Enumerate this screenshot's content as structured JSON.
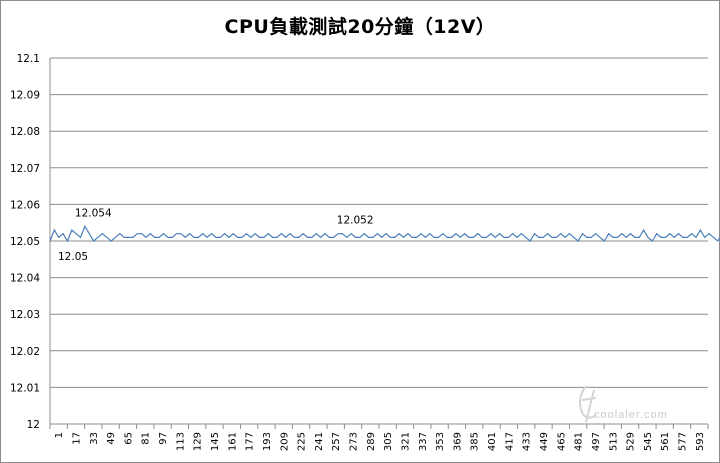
{
  "chart_data": {
    "type": "line",
    "title": "CPU負載測試20分鐘（12V）",
    "xlabel": "",
    "ylabel": "",
    "ylim": [
      12.0,
      12.1
    ],
    "yticks": [
      "12",
      "12.01",
      "12.02",
      "12.03",
      "12.04",
      "12.05",
      "12.06",
      "12.07",
      "12.08",
      "12.09",
      "12.1"
    ],
    "xlim": [
      1,
      604
    ],
    "xticks": [
      1,
      17,
      33,
      49,
      65,
      81,
      97,
      113,
      129,
      145,
      161,
      177,
      193,
      209,
      225,
      241,
      257,
      273,
      289,
      305,
      321,
      337,
      353,
      369,
      385,
      401,
      417,
      433,
      449,
      465,
      481,
      497,
      513,
      529,
      545,
      561,
      577,
      593
    ],
    "grid": "horizontal",
    "legend": "none",
    "series_color": "#4a7ebb",
    "series": [
      {
        "sample_interval": 4,
        "values": [
          12.05,
          12.053,
          12.051,
          12.052,
          12.05,
          12.053,
          12.052,
          12.051,
          12.054,
          12.052,
          12.05,
          12.051,
          12.052,
          12.051,
          12.05,
          12.051,
          12.052,
          12.051,
          12.051,
          12.051,
          12.052,
          12.052,
          12.051,
          12.052,
          12.051,
          12.051,
          12.052,
          12.051,
          12.051,
          12.052,
          12.052,
          12.051,
          12.052,
          12.051,
          12.051,
          12.052,
          12.051,
          12.052,
          12.051,
          12.051,
          12.052,
          12.051,
          12.052,
          12.051,
          12.051,
          12.052,
          12.051,
          12.052,
          12.051,
          12.051,
          12.052,
          12.051,
          12.051,
          12.052,
          12.051,
          12.052,
          12.051,
          12.051,
          12.052,
          12.051,
          12.051,
          12.052,
          12.051,
          12.052,
          12.051,
          12.051,
          12.052,
          12.052,
          12.051,
          12.052,
          12.051,
          12.051,
          12.052,
          12.051,
          12.051,
          12.052,
          12.051,
          12.052,
          12.051,
          12.051,
          12.052,
          12.051,
          12.052,
          12.051,
          12.051,
          12.052,
          12.051,
          12.052,
          12.051,
          12.051,
          12.052,
          12.051,
          12.051,
          12.052,
          12.051,
          12.052,
          12.051,
          12.051,
          12.052,
          12.051,
          12.051,
          12.052,
          12.051,
          12.052,
          12.051,
          12.051,
          12.052,
          12.051,
          12.052,
          12.051,
          12.05,
          12.052,
          12.051,
          12.051,
          12.052,
          12.051,
          12.051,
          12.052,
          12.051,
          12.052,
          12.051,
          12.05,
          12.052,
          12.051,
          12.051,
          12.052,
          12.051,
          12.05,
          12.052,
          12.051,
          12.051,
          12.052,
          12.051,
          12.052,
          12.051,
          12.051,
          12.053,
          12.051,
          12.05,
          12.052,
          12.051,
          12.051,
          12.052,
          12.051,
          12.052,
          12.051,
          12.051,
          12.052,
          12.051,
          12.053,
          12.051,
          12.052,
          12.051,
          12.05,
          12.052,
          12.051
        ]
      }
    ],
    "annotations": [
      {
        "text": "12.054",
        "x": 33,
        "y": 12.054
      },
      {
        "text": "12.05",
        "x": 1,
        "y": 12.05
      },
      {
        "text": "12.052",
        "x": 273,
        "y": 12.052
      }
    ]
  },
  "watermark": {
    "text": "coolaler.com"
  }
}
